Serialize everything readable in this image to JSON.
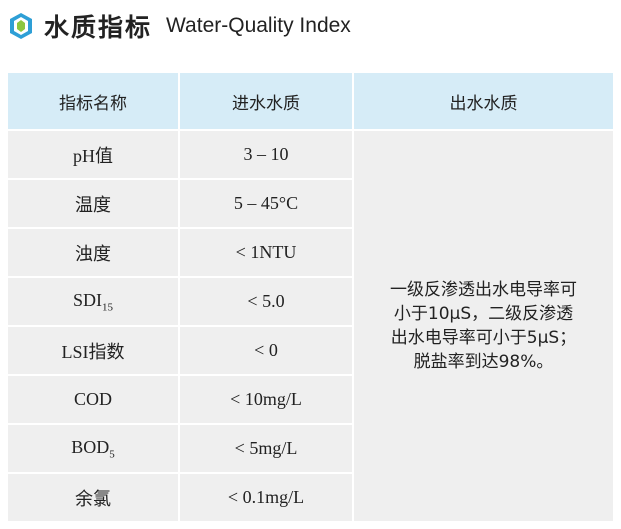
{
  "header": {
    "title": "水质指标",
    "subtitle": "Water-Quality Index"
  },
  "table": {
    "headers": [
      "指标名称",
      "进水水质",
      "出水水质"
    ],
    "rows": [
      {
        "name": "pH值",
        "inlet": "3 – 10"
      },
      {
        "name": "温度",
        "inlet": "5 – 45°C"
      },
      {
        "name": "浊度",
        "inlet": "< 1NTU"
      },
      {
        "name": "SDI",
        "name_sub": "15",
        "inlet": "< 5.0"
      },
      {
        "name": "LSI指数",
        "inlet": "< 0"
      },
      {
        "name": "COD",
        "inlet": "< 10mg/L"
      },
      {
        "name": "BOD",
        "name_sub": "5",
        "inlet": "< 5mg/L"
      },
      {
        "name": "余氯",
        "inlet": "< 0.1mg/L"
      }
    ],
    "outlet": [
      "一级反渗透出水电导率可",
      "小于10μS，二级反渗透",
      "出水电导率可小于5μS；",
      "脱盐率到达98%。"
    ]
  }
}
